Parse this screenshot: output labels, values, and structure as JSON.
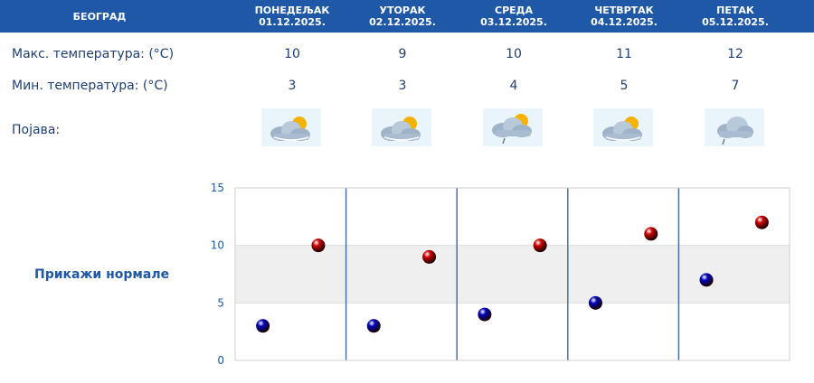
{
  "header": {
    "city": "БЕОГРАД",
    "days": [
      {
        "name": "ПОНЕДЕЉАК",
        "date": "01.12.2025."
      },
      {
        "name": "УТОРАК",
        "date": "02.12.2025."
      },
      {
        "name": "СРЕДА",
        "date": "03.12.2025."
      },
      {
        "name": "ЧЕТВРТАК",
        "date": "04.12.2025."
      },
      {
        "name": "ПЕТАК",
        "date": "05.12.2025."
      }
    ]
  },
  "rows": {
    "max_label": "Макс. температура: (°C)",
    "min_label": "Мин. температура: (°C)",
    "phenomenon_label": "Појава:",
    "max_values": [
      "10",
      "9",
      "10",
      "11",
      "12"
    ],
    "min_values": [
      "3",
      "3",
      "4",
      "5",
      "7"
    ],
    "icons": [
      "partly-cloudy-sun-icon",
      "partly-cloudy-sun-icon",
      "partly-cloudy-sun-drizzle-icon",
      "partly-cloudy-sun-icon",
      "cloud-drizzle-icon"
    ]
  },
  "normals_link": "Прикажи нормале",
  "colors": {
    "header_bg": "#1f58a6",
    "max_marker": "#cc0000",
    "min_marker": "#0000bb",
    "normal_band": "#efefef"
  },
  "chart_data": {
    "type": "scatter",
    "categories": [
      "01.12.2025.",
      "02.12.2025.",
      "03.12.2025.",
      "04.12.2025.",
      "05.12.2025."
    ],
    "ylim": [
      0,
      15
    ],
    "yticks": [
      "0",
      "5",
      "10",
      "15"
    ],
    "normal_band": [
      5,
      10
    ],
    "series": [
      {
        "values": [
          10,
          9,
          10,
          11,
          12
        ],
        "color": "#cc0000"
      },
      {
        "values": [
          3,
          3,
          4,
          5,
          7
        ],
        "color": "#0000bb"
      }
    ]
  }
}
